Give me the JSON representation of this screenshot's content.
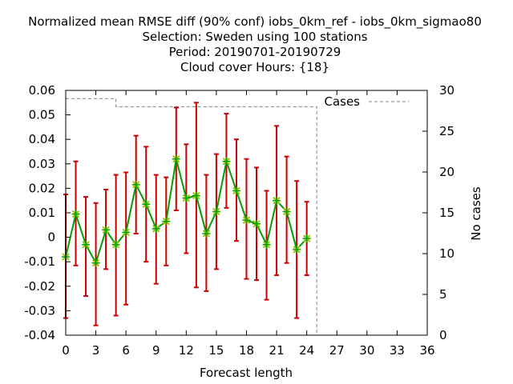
{
  "chart_data": {
    "type": "line",
    "title_lines": [
      "Normalized mean RMSE diff (90% conf) iobs_0km_ref - iobs_0km_sigmao80",
      "Selection: Sweden using   100 stations",
      "Period: 20190701-20190729",
      "Cloud cover   Hours: {18}"
    ],
    "xlabel": "Forecast length",
    "ylabel": "",
    "y2label": "No cases",
    "xlim": [
      0,
      36
    ],
    "ylim": [
      -0.04,
      0.06
    ],
    "y2lim": [
      0,
      30
    ],
    "xticks": [
      "0",
      "3",
      "6",
      "9",
      "12",
      "15",
      "18",
      "21",
      "24",
      "27",
      "30",
      "33",
      "36"
    ],
    "yticks": [
      "-0.04",
      "-0.03",
      "-0.02",
      "-0.01",
      "0",
      "0.01",
      "0.02",
      "0.03",
      "0.04",
      "0.05",
      "0.06"
    ],
    "y2ticks": [
      "0",
      "5",
      "10",
      "15",
      "20",
      "25",
      "30"
    ],
    "grid": false,
    "legend_position": "top-right",
    "series": [
      {
        "kind": "mean_with_errorbars",
        "color": "#00a000",
        "marker_color": "#a0c000",
        "errorbar_color": "#cc0000",
        "x": [
          0,
          1,
          2,
          3,
          4,
          5,
          6,
          7,
          8,
          9,
          10,
          11,
          12,
          13,
          14,
          15,
          16,
          17,
          18,
          19,
          20,
          21,
          22,
          23,
          24
        ],
        "y": [
          -0.008,
          0.0095,
          -0.003,
          -0.0105,
          0.003,
          -0.003,
          0.002,
          0.0215,
          0.0135,
          0.0035,
          0.0065,
          0.032,
          0.016,
          0.017,
          0.0015,
          0.0105,
          0.031,
          0.019,
          0.007,
          0.0055,
          -0.003,
          0.015,
          0.0105,
          -0.005,
          -0.0005
        ],
        "lower": [
          -0.033,
          -0.0115,
          -0.024,
          -0.036,
          -0.013,
          -0.032,
          -0.0275,
          0.0015,
          -0.01,
          -0.019,
          -0.0115,
          0.011,
          -0.0065,
          -0.0205,
          -0.022,
          -0.013,
          0.012,
          -0.0015,
          -0.017,
          -0.0175,
          -0.0255,
          -0.0155,
          -0.0105,
          -0.033,
          -0.0155
        ],
        "upper": [
          0.0175,
          0.031,
          0.0165,
          0.014,
          0.0195,
          0.0255,
          0.0265,
          0.0415,
          0.037,
          0.0255,
          0.0245,
          0.053,
          0.038,
          0.055,
          0.0255,
          0.034,
          0.0505,
          0.04,
          0.032,
          0.0285,
          0.019,
          0.0455,
          0.033,
          0.023,
          0.0145
        ]
      },
      {
        "name": "Cases",
        "kind": "cases",
        "axis": "right",
        "color": "#808080",
        "x": [
          0,
          1,
          2,
          3,
          4,
          5,
          6,
          7,
          8,
          9,
          10,
          11,
          12,
          13,
          14,
          15,
          16,
          17,
          18,
          19,
          20,
          21,
          22,
          23,
          24,
          25,
          26,
          27,
          28,
          29,
          30,
          31,
          32,
          33,
          34,
          35,
          36
        ],
        "y": [
          29,
          29,
          29,
          29,
          29,
          28,
          28,
          28,
          28,
          28,
          28,
          28,
          28,
          28,
          28,
          28,
          28,
          28,
          28,
          28,
          28,
          28,
          28,
          28,
          28,
          0,
          0,
          0,
          0,
          0,
          0,
          0,
          0,
          0,
          0,
          0,
          0
        ]
      }
    ]
  }
}
